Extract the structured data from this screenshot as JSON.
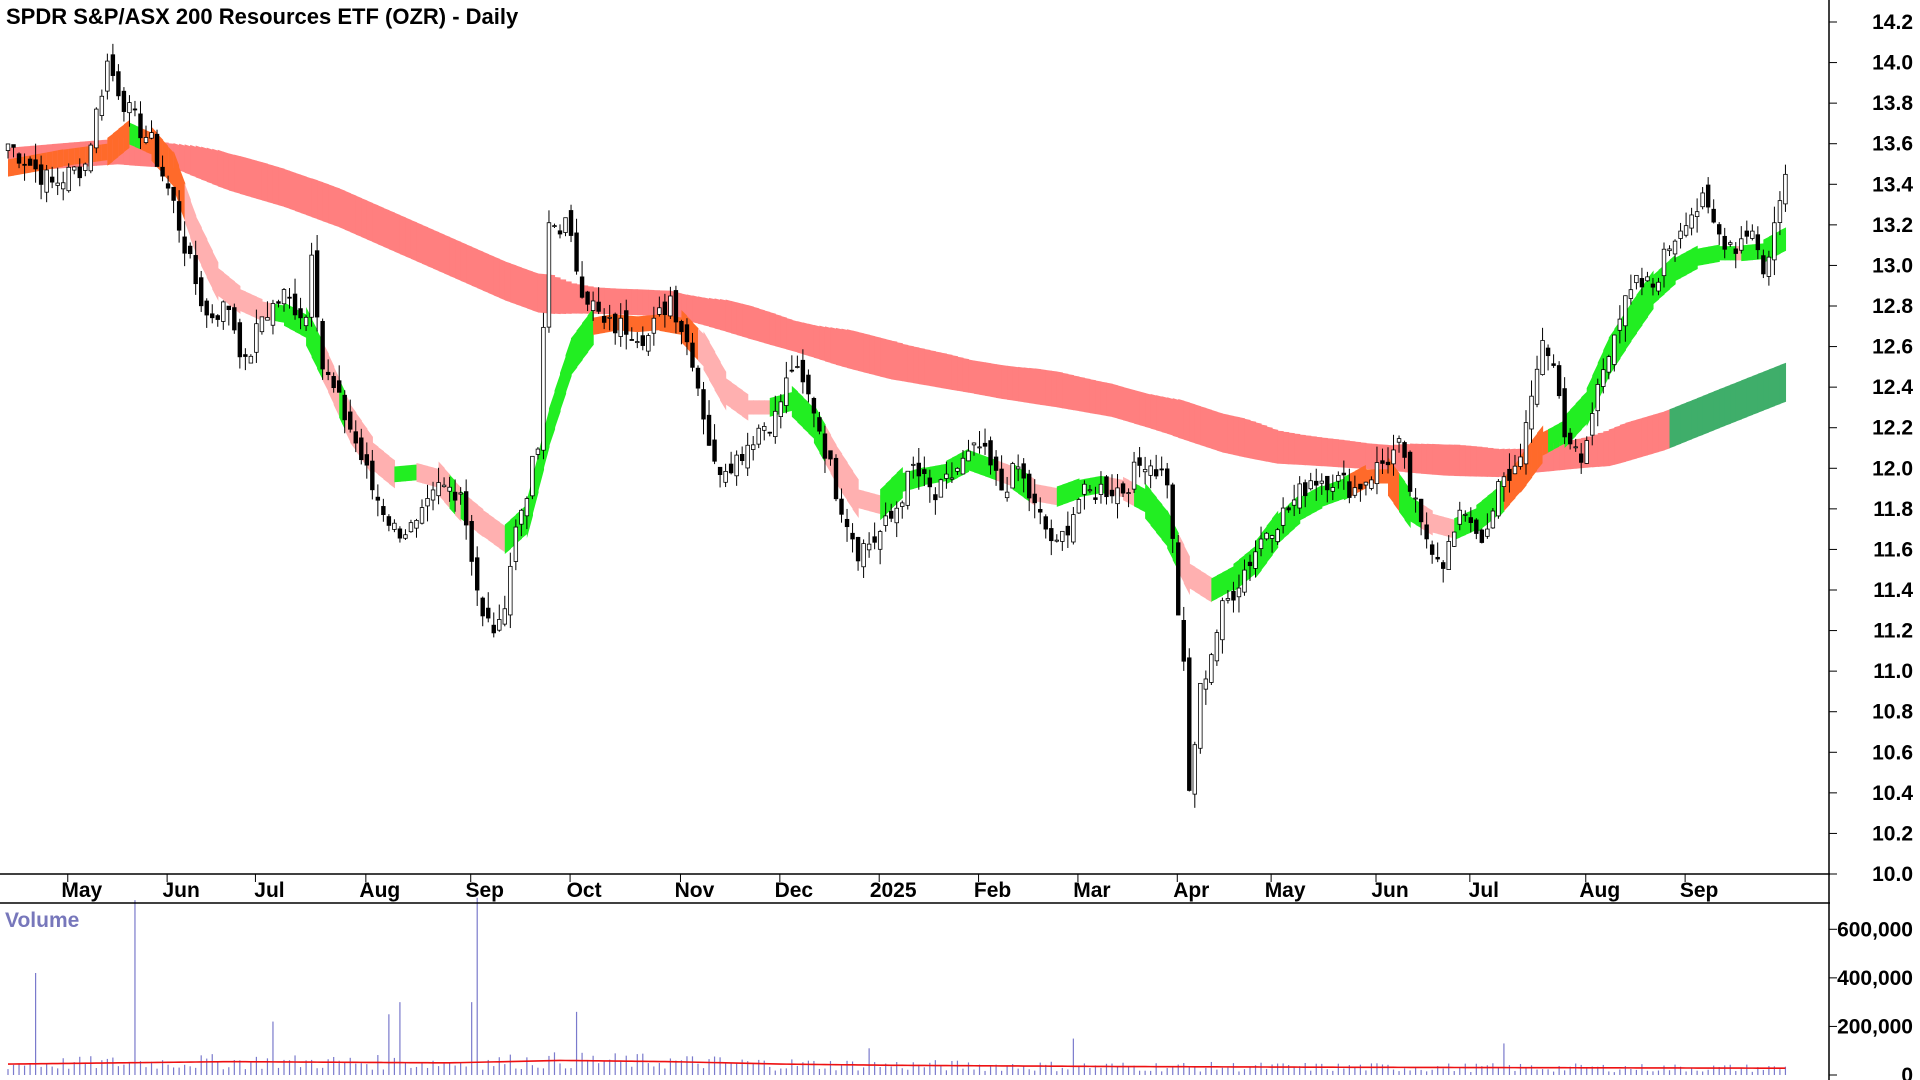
{
  "chart_data": {
    "type": "candlestick",
    "title": "SPDR S&P/ASX 200 Resources ETF (OZR) - Daily",
    "price_axis": {
      "range": [
        10.0,
        14.2
      ],
      "ticks": [
        "10.0",
        "10.2",
        "10.4",
        "10.6",
        "10.8",
        "11.0",
        "11.2",
        "11.4",
        "11.6",
        "11.8",
        "12.0",
        "12.2",
        "12.4",
        "12.6",
        "12.8",
        "13.0",
        "13.2",
        "13.4",
        "13.6",
        "13.8",
        "14.0",
        "14.2"
      ]
    },
    "time_axis": {
      "labels": [
        "May",
        "Jun",
        "Jul",
        "Aug",
        "Sep",
        "Oct",
        "Nov",
        "Dec",
        "2025",
        "Feb",
        "Mar",
        "Apr",
        "May",
        "Jun",
        "Jul",
        "Aug",
        "Sep"
      ],
      "label_index": [
        13,
        31,
        47,
        67,
        86,
        104,
        124,
        142,
        160,
        178,
        196,
        214,
        231,
        250,
        267,
        288,
        306
      ]
    },
    "volume_panel": {
      "title": "Volume",
      "range": [
        0,
        700000
      ],
      "ticks": [
        "0",
        "200,000",
        "400,000",
        "600,000"
      ]
    },
    "price_anchors": [
      [
        0,
        13.6
      ],
      [
        8,
        13.4
      ],
      [
        14,
        13.5
      ],
      [
        18,
        14.0
      ],
      [
        22,
        13.75
      ],
      [
        26,
        13.6
      ],
      [
        30,
        13.3
      ],
      [
        33,
        13.0
      ],
      [
        36,
        12.75
      ],
      [
        40,
        12.8
      ],
      [
        43,
        12.5
      ],
      [
        46,
        12.75
      ],
      [
        50,
        12.85
      ],
      [
        54,
        12.75
      ],
      [
        55,
        13.1
      ],
      [
        57,
        12.5
      ],
      [
        62,
        12.2
      ],
      [
        66,
        11.9
      ],
      [
        70,
        11.7
      ],
      [
        74,
        11.7
      ],
      [
        78,
        11.9
      ],
      [
        82,
        11.9
      ],
      [
        86,
        11.25
      ],
      [
        89,
        11.2
      ],
      [
        92,
        11.7
      ],
      [
        96,
        12.1
      ],
      [
        98,
        13.2
      ],
      [
        101,
        13.2
      ],
      [
        104,
        12.9
      ],
      [
        108,
        12.7
      ],
      [
        112,
        12.7
      ],
      [
        116,
        12.65
      ],
      [
        120,
        12.85
      ],
      [
        124,
        12.55
      ],
      [
        128,
        12.0
      ],
      [
        132,
        12.05
      ],
      [
        136,
        12.2
      ],
      [
        139,
        12.25
      ],
      [
        142,
        12.5
      ],
      [
        146,
        12.3
      ],
      [
        150,
        11.9
      ],
      [
        154,
        11.6
      ],
      [
        157,
        11.65
      ],
      [
        160,
        11.75
      ],
      [
        164,
        12.0
      ],
      [
        168,
        11.85
      ],
      [
        172,
        12.0
      ],
      [
        176,
        12.1
      ],
      [
        180,
        11.9
      ],
      [
        183,
        12.0
      ],
      [
        186,
        11.8
      ],
      [
        190,
        11.6
      ],
      [
        194,
        11.85
      ],
      [
        198,
        11.9
      ],
      [
        202,
        11.9
      ],
      [
        206,
        12.05
      ],
      [
        210,
        11.95
      ],
      [
        212,
        11.3
      ],
      [
        213,
        11.0
      ],
      [
        214,
        10.4
      ],
      [
        216,
        10.9
      ],
      [
        218,
        11.1
      ],
      [
        220,
        11.3
      ],
      [
        224,
        11.5
      ],
      [
        228,
        11.7
      ],
      [
        232,
        11.8
      ],
      [
        236,
        11.95
      ],
      [
        240,
        11.95
      ],
      [
        244,
        11.9
      ],
      [
        248,
        12.0
      ],
      [
        252,
        12.1
      ],
      [
        254,
        11.9
      ],
      [
        256,
        11.7
      ],
      [
        260,
        11.55
      ],
      [
        264,
        11.8
      ],
      [
        266,
        11.7
      ],
      [
        268,
        11.65
      ],
      [
        270,
        11.9
      ],
      [
        273,
        12.0
      ],
      [
        276,
        12.3
      ],
      [
        278,
        12.65
      ],
      [
        280,
        12.5
      ],
      [
        282,
        12.2
      ],
      [
        285,
        12.0
      ],
      [
        288,
        12.4
      ],
      [
        291,
        12.7
      ],
      [
        295,
        12.9
      ],
      [
        298,
        12.9
      ],
      [
        301,
        13.1
      ],
      [
        304,
        13.25
      ],
      [
        307,
        13.3
      ],
      [
        310,
        13.15
      ],
      [
        313,
        13.1
      ],
      [
        316,
        13.2
      ],
      [
        318,
        12.95
      ],
      [
        320,
        13.2
      ],
      [
        321,
        13.3
      ],
      [
        322,
        13.45
      ]
    ],
    "ema_short_anchors": [
      [
        0,
        13.48
      ],
      [
        10,
        13.53
      ],
      [
        18,
        13.56
      ],
      [
        22,
        13.65
      ],
      [
        26,
        13.6
      ],
      [
        30,
        13.47
      ],
      [
        34,
        13.15
      ],
      [
        38,
        12.92
      ],
      [
        42,
        12.83
      ],
      [
        46,
        12.78
      ],
      [
        50,
        12.76
      ],
      [
        54,
        12.7
      ],
      [
        58,
        12.47
      ],
      [
        62,
        12.22
      ],
      [
        66,
        12.06
      ],
      [
        70,
        11.97
      ],
      [
        74,
        11.98
      ],
      [
        78,
        11.95
      ],
      [
        82,
        11.82
      ],
      [
        86,
        11.73
      ],
      [
        90,
        11.65
      ],
      [
        94,
        11.75
      ],
      [
        98,
        12.2
      ],
      [
        102,
        12.55
      ],
      [
        106,
        12.7
      ],
      [
        110,
        12.72
      ],
      [
        114,
        12.71
      ],
      [
        118,
        12.72
      ],
      [
        122,
        12.7
      ],
      [
        126,
        12.58
      ],
      [
        130,
        12.38
      ],
      [
        134,
        12.3
      ],
      [
        138,
        12.3
      ],
      [
        142,
        12.33
      ],
      [
        146,
        12.22
      ],
      [
        150,
        12.02
      ],
      [
        154,
        11.85
      ],
      [
        158,
        11.82
      ],
      [
        162,
        11.93
      ],
      [
        166,
        11.96
      ],
      [
        170,
        11.98
      ],
      [
        174,
        12.04
      ],
      [
        178,
        12.0
      ],
      [
        182,
        11.96
      ],
      [
        186,
        11.88
      ],
      [
        190,
        11.86
      ],
      [
        194,
        11.9
      ],
      [
        198,
        11.92
      ],
      [
        202,
        11.9
      ],
      [
        206,
        11.84
      ],
      [
        210,
        11.7
      ],
      [
        214,
        11.47
      ],
      [
        218,
        11.4
      ],
      [
        222,
        11.46
      ],
      [
        226,
        11.55
      ],
      [
        230,
        11.7
      ],
      [
        234,
        11.8
      ],
      [
        238,
        11.86
      ],
      [
        242,
        11.9
      ],
      [
        246,
        11.96
      ],
      [
        250,
        11.96
      ],
      [
        254,
        11.8
      ],
      [
        258,
        11.73
      ],
      [
        262,
        11.7
      ],
      [
        266,
        11.75
      ],
      [
        270,
        11.84
      ],
      [
        274,
        11.97
      ],
      [
        278,
        12.12
      ],
      [
        282,
        12.18
      ],
      [
        286,
        12.3
      ],
      [
        290,
        12.55
      ],
      [
        294,
        12.72
      ],
      [
        298,
        12.88
      ],
      [
        302,
        12.98
      ],
      [
        306,
        13.04
      ],
      [
        310,
        13.06
      ],
      [
        314,
        13.06
      ],
      [
        318,
        13.07
      ],
      [
        322,
        13.13
      ]
    ],
    "ema_long_anchors": [
      [
        0,
        13.48
      ],
      [
        20,
        13.52
      ],
      [
        30,
        13.5
      ],
      [
        40,
        13.4
      ],
      [
        50,
        13.32
      ],
      [
        60,
        13.22
      ],
      [
        70,
        13.1
      ],
      [
        80,
        12.98
      ],
      [
        90,
        12.86
      ],
      [
        96,
        12.8
      ],
      [
        100,
        12.79
      ],
      [
        110,
        12.78
      ],
      [
        120,
        12.77
      ],
      [
        130,
        12.7
      ],
      [
        140,
        12.62
      ],
      [
        150,
        12.54
      ],
      [
        160,
        12.47
      ],
      [
        170,
        12.42
      ],
      [
        180,
        12.37
      ],
      [
        190,
        12.33
      ],
      [
        200,
        12.28
      ],
      [
        210,
        12.2
      ],
      [
        220,
        12.11
      ],
      [
        230,
        12.05
      ],
      [
        240,
        12.03
      ],
      [
        250,
        12.01
      ],
      [
        260,
        11.99
      ],
      [
        270,
        11.98
      ],
      [
        280,
        12.01
      ],
      [
        290,
        12.04
      ],
      [
        300,
        12.12
      ],
      [
        310,
        12.23
      ],
      [
        322,
        12.36
      ]
    ],
    "volume_anchors": [
      [
        0,
        45000
      ],
      [
        40,
        55000
      ],
      [
        80,
        50000
      ],
      [
        100,
        60000
      ],
      [
        120,
        55000
      ],
      [
        140,
        45000
      ],
      [
        160,
        40000
      ],
      [
        200,
        35000
      ],
      [
        240,
        32000
      ],
      [
        280,
        30000
      ],
      [
        322,
        28000
      ]
    ],
    "volume_spikes": [
      [
        5,
        420000
      ],
      [
        23,
        720000
      ],
      [
        48,
        220000
      ],
      [
        69,
        250000
      ],
      [
        71,
        300000
      ],
      [
        85,
        730000
      ],
      [
        84,
        300000
      ],
      [
        103,
        260000
      ],
      [
        156,
        110000
      ],
      [
        193,
        150000
      ],
      [
        271,
        130000
      ]
    ],
    "colors": {
      "up_candle_fill": "#ffffff",
      "down_candle_fill": "#000000",
      "candle_line": "#000000",
      "short_ribbon_up": "#22ee22",
      "short_ribbon_down": "#ffb0b0",
      "long_ribbon_down": "#ff7f7f",
      "ribbon_overlap": "#ff6a2a",
      "long_ribbon_up": "#3fae6a",
      "volume_bar": "#7a7acc",
      "volume_ma": "#ee1111",
      "panel_border": "#000000"
    }
  }
}
